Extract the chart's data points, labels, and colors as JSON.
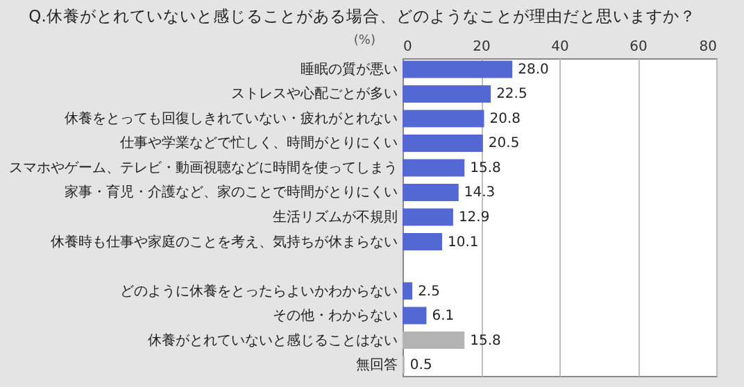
{
  "chart_data": {
    "type": "bar",
    "orientation": "horizontal",
    "title": "Q.休養がとれていないと感じることがある場合、どのようなことが理由だと思いますか？",
    "xlabel": "(%)",
    "categories": [
      "睡眠の質が悪い",
      "ストレスや心配ごとが多い",
      "休養をとっても回復しきれていない・疲れがとれない",
      "仕事や学業などで忙しく、時間がとりにくい",
      "スマホやゲーム、テレビ・動画視聴などに時間を使ってしまう",
      "家事・育児・介護など、家のことで時間がとりにくい",
      "生活リズムが不規則",
      "休養時も仕事や家庭のことを考え、気持ちが休まらない",
      null,
      "どのように休養をとったらよいかわからない",
      "その他・わからない",
      "休養がとれていないと感じることはない",
      "無回答"
    ],
    "values": [
      28.0,
      22.5,
      20.8,
      20.5,
      15.8,
      14.3,
      12.9,
      10.1,
      null,
      2.5,
      6.1,
      15.8,
      0.5
    ],
    "colors": [
      "#5468d4",
      "#5468d4",
      "#5468d4",
      "#5468d4",
      "#5468d4",
      "#5468d4",
      "#5468d4",
      "#5468d4",
      "#5468d4",
      "#5468d4",
      "#5468d4",
      "#b4b4b4",
      "#b4b4b4"
    ],
    "value_labels": [
      "28.0",
      "22.5",
      "20.8",
      "20.5",
      "15.8",
      "14.3",
      "12.9",
      "10.1",
      null,
      "2.5",
      "6.1",
      "15.8",
      "0.5"
    ],
    "xlim": [
      0,
      80
    ],
    "xticks": [
      0,
      20,
      40,
      60,
      80
    ],
    "grid": "x"
  }
}
